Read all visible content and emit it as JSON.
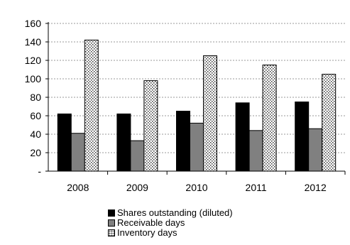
{
  "chart_data": {
    "type": "bar",
    "categories": [
      "2008",
      "2009",
      "2010",
      "2011",
      "2012"
    ],
    "series": [
      {
        "name": "Shares outstanding (diluted)",
        "values": [
          62,
          62,
          65,
          74,
          75
        ],
        "color": "#000000",
        "pattern": "solid"
      },
      {
        "name": "Receivable days",
        "values": [
          41,
          33,
          52,
          44,
          46
        ],
        "color": "#808080",
        "pattern": "solid"
      },
      {
        "name": "Inventory days",
        "values": [
          142,
          98,
          125,
          115,
          105
        ],
        "color": "#ffffff",
        "pattern": "dotted"
      }
    ],
    "yticks": [
      "-",
      "20",
      "40",
      "60",
      "80",
      "100",
      "120",
      "140",
      "160"
    ],
    "ylim": [
      0,
      160
    ],
    "grid": true,
    "gridStyle": "dashed",
    "legend_position": "bottom",
    "title": "",
    "xlabel": "",
    "ylabel": ""
  }
}
